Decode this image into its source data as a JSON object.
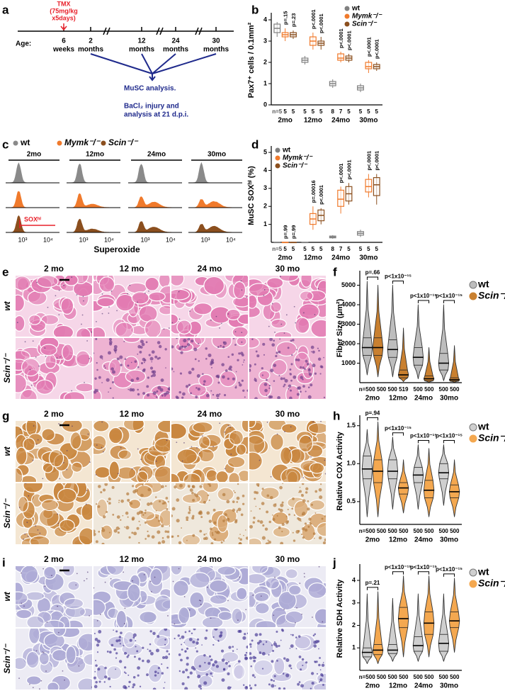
{
  "panel_labels": [
    "a",
    "b",
    "c",
    "d",
    "e",
    "f",
    "g",
    "h",
    "i",
    "j"
  ],
  "timeline": {
    "tmx": [
      "TMX",
      "(75mg/kg",
      "x5days)"
    ],
    "age_label": "Age:",
    "ticks": [
      [
        "6",
        "weeks"
      ],
      [
        "2",
        "months"
      ],
      [
        "12",
        "months"
      ],
      [
        "24",
        "months"
      ],
      [
        "30",
        "months"
      ]
    ],
    "analysis": [
      "MuSC analysis.",
      "BaCl₂ injury and",
      "analysis at 21 d.p.i."
    ]
  },
  "flow": {
    "legend": [
      "wt",
      "Mymk⁻/⁻",
      "Scin⁻/⁻"
    ],
    "colors": [
      "#8a8a8a",
      "#f07a2c",
      "#8b4f1e"
    ],
    "columns": [
      "2mo",
      "12mo",
      "24mo",
      "30mo"
    ],
    "x_tick_labels": [
      "10³",
      "10⁴"
    ],
    "gate_label": "SOXʰⁱ",
    "xlabel": "Superoxide"
  },
  "chart_data": [
    {
      "type": "box",
      "ylabel": "Pax7⁺ cells / 0.1mm²",
      "ylim": [
        0,
        4.2
      ],
      "yticks": [
        0,
        1,
        2,
        3,
        4
      ],
      "categories": [
        "2mo",
        "12mo",
        "24mo",
        "30mo"
      ],
      "n_labels": [
        "n=5",
        "5",
        "5",
        "5",
        "5",
        "5",
        "8",
        "7",
        "5",
        "5",
        "5",
        "5"
      ],
      "p_labels": [
        "p=.15",
        "p=.23",
        "p<.0001",
        "p<.0001",
        "p<.0001",
        "p<.0001",
        "p<.0001",
        "p<.0001"
      ],
      "series": [
        {
          "name": "wt",
          "color": "#808080",
          "median": [
            3.6,
            2.1,
            1.0,
            0.8
          ],
          "q1": [
            3.4,
            2.0,
            0.9,
            0.7
          ],
          "q3": [
            3.8,
            2.2,
            1.1,
            0.9
          ],
          "min": [
            3.2,
            1.9,
            0.8,
            0.6
          ],
          "max": [
            3.9,
            2.3,
            1.2,
            1.0
          ]
        },
        {
          "name": "Mymk⁻/⁻",
          "color": "#f07a2c",
          "median": [
            3.3,
            3.0,
            2.2,
            1.8
          ],
          "q1": [
            3.2,
            2.8,
            2.1,
            1.7
          ],
          "q3": [
            3.4,
            3.2,
            2.4,
            2.0
          ],
          "min": [
            3.0,
            2.6,
            2.0,
            1.5
          ],
          "max": [
            3.6,
            3.4,
            2.5,
            2.1
          ]
        },
        {
          "name": "Scin⁻/⁻",
          "color": "#8b4f1e",
          "median": [
            3.3,
            2.9,
            2.2,
            1.8
          ],
          "q1": [
            3.2,
            2.8,
            2.1,
            1.7
          ],
          "q3": [
            3.4,
            3.0,
            2.3,
            1.9
          ],
          "min": [
            3.1,
            2.6,
            2.0,
            1.6
          ],
          "max": [
            3.5,
            3.2,
            2.4,
            2.0
          ]
        }
      ]
    },
    {
      "type": "box",
      "ylabel": "MuSC SOXʰⁱ (%)",
      "ylim": [
        0,
        5.2
      ],
      "yticks": [
        1,
        2,
        3,
        4,
        5
      ],
      "categories": [
        "2mo",
        "12mo",
        "24mo",
        "30mo"
      ],
      "n_labels": [
        "n=5",
        "5",
        "5",
        "5",
        "5",
        "5",
        "8",
        "7",
        "5",
        "5",
        "5",
        "5"
      ],
      "p_labels": [
        "p=.99",
        "p=.99",
        "p=.00016",
        "p<.0001",
        "p<.0001",
        "p<.0001",
        "p<.0001",
        "p<.0001"
      ],
      "series": [
        {
          "name": "wt",
          "color": "#808080",
          "median": [
            0,
            0,
            0.3,
            0.5
          ],
          "q1": [
            0,
            0,
            0.25,
            0.4
          ],
          "q3": [
            0,
            0,
            0.35,
            0.6
          ],
          "min": [
            0,
            0,
            0.2,
            0.3
          ],
          "max": [
            0,
            0,
            0.4,
            0.7
          ]
        },
        {
          "name": "Mymk⁻/⁻",
          "color": "#f07a2c",
          "median": [
            0,
            1.3,
            2.4,
            3.1
          ],
          "q1": [
            0,
            1.0,
            2.0,
            2.8
          ],
          "q3": [
            0,
            1.6,
            2.9,
            3.5
          ],
          "min": [
            0,
            0.7,
            1.6,
            2.5
          ],
          "max": [
            0,
            2.0,
            3.1,
            3.8
          ]
        },
        {
          "name": "Scin⁻/⁻",
          "color": "#8b4f1e",
          "median": [
            0,
            1.5,
            2.7,
            3.2
          ],
          "q1": [
            0,
            1.2,
            2.3,
            2.6
          ],
          "q3": [
            0,
            1.8,
            3.1,
            3.6
          ],
          "min": [
            0,
            1.0,
            2.1,
            2.1
          ],
          "max": [
            0,
            1.9,
            3.3,
            3.8
          ]
        }
      ]
    },
    {
      "type": "violin",
      "ylabel": "Fiber Size (μm²)",
      "ylim": [
        0,
        5600
      ],
      "yticks": [
        1000,
        2000,
        3000,
        4000,
        5000
      ],
      "categories": [
        "2mo",
        "12mo",
        "24mo",
        "30mo"
      ],
      "n_labels": [
        "n=500 500",
        "500 519",
        "500 500",
        "500 500"
      ],
      "p_labels": [
        "p=.66",
        "p<1x10⁻¹⁵",
        "p<1x10⁻¹⁵",
        "p<1x10⁻¹⁵"
      ],
      "series": [
        {
          "name": "wt",
          "color": "#bdbdbd",
          "median": [
            1800,
            1700,
            1300,
            1000
          ],
          "q1": [
            1400,
            1300,
            900,
            650
          ],
          "q3": [
            2300,
            2200,
            1800,
            1500
          ],
          "min": [
            400,
            300,
            200,
            100
          ],
          "max": [
            5200,
            5000,
            4000,
            4000
          ]
        },
        {
          "name": "Scin⁻/⁻",
          "color": "#c98030",
          "median": [
            1800,
            400,
            200,
            150
          ],
          "q1": [
            1400,
            250,
            100,
            80
          ],
          "q3": [
            2300,
            650,
            350,
            250
          ],
          "min": [
            300,
            50,
            20,
            20
          ],
          "max": [
            5000,
            2800,
            1800,
            1900
          ]
        }
      ]
    },
    {
      "type": "violin",
      "ylabel": "Relative COX Activity",
      "ylim": [
        0.2,
        1.6
      ],
      "yticks": [
        {
          "value": 0.5,
          "label": "0.5"
        },
        {
          "value": 1,
          "label": "1.0"
        },
        {
          "value": 1.5,
          "label": "1.5"
        }
      ],
      "categories": [
        "2mo",
        "12mo",
        "24mo",
        "30mo"
      ],
      "n_labels": [
        "n=500 500",
        "500 500",
        "500 500",
        "500 500"
      ],
      "p_labels": [
        "p=.94",
        "p<1x10⁻¹⁵",
        "p<1x10⁻¹⁵",
        "p<1x10⁻¹⁵"
      ],
      "series": [
        {
          "name": "wt",
          "color": "#cfcfcf",
          "median": [
            0.93,
            0.9,
            0.85,
            0.88
          ],
          "q1": [
            0.8,
            0.8,
            0.75,
            0.8
          ],
          "q3": [
            1.1,
            1.05,
            0.95,
            1.0
          ],
          "min": [
            0.3,
            0.4,
            0.4,
            0.45
          ],
          "max": [
            1.45,
            1.35,
            1.25,
            1.25
          ]
        },
        {
          "name": "Scin⁻/⁻",
          "color": "#f4a850",
          "median": [
            0.9,
            0.68,
            0.65,
            0.63
          ],
          "q1": [
            0.75,
            0.6,
            0.55,
            0.55
          ],
          "q3": [
            1.05,
            0.75,
            0.78,
            0.72
          ],
          "min": [
            0.3,
            0.35,
            0.3,
            0.3
          ],
          "max": [
            1.55,
            1.05,
            1.2,
            1.05
          ]
        }
      ]
    },
    {
      "type": "violin",
      "ylabel": "Relative SDH Activity",
      "ylim": [
        0,
        4.6
      ],
      "yticks": [
        1,
        2,
        3,
        4
      ],
      "categories": [
        "2mo",
        "12mo",
        "24mo",
        "30mo"
      ],
      "n_labels": [
        "n=500 500",
        "500 500",
        "500 500",
        "500 500"
      ],
      "p_labels": [
        "p=.21",
        "p<1x10⁻¹⁵",
        "p<1x10⁻¹⁵",
        "p<1x10⁻¹⁵"
      ],
      "series": [
        {
          "name": "wt",
          "color": "#cfcfcf",
          "median": [
            0.8,
            0.9,
            1.1,
            1.2
          ],
          "q1": [
            0.6,
            0.75,
            0.85,
            0.85
          ],
          "q3": [
            1.0,
            1.15,
            1.5,
            1.6
          ],
          "min": [
            0.3,
            0.4,
            0.4,
            0.4
          ],
          "max": [
            3.4,
            3.2,
            3.4,
            3.4
          ]
        },
        {
          "name": "Scin⁻/⁻",
          "color": "#f4a850",
          "median": [
            0.9,
            2.3,
            2.1,
            2.2
          ],
          "q1": [
            0.7,
            1.9,
            1.6,
            1.9
          ],
          "q3": [
            1.15,
            2.8,
            2.6,
            2.6
          ],
          "min": [
            0.3,
            0.6,
            0.6,
            0.8
          ],
          "max": [
            3.5,
            4.2,
            4.2,
            4.1
          ]
        }
      ]
    }
  ],
  "histology": [
    {
      "columns": [
        "2 mo",
        "12 mo",
        "24 mo",
        "30 mo"
      ],
      "rows": [
        "wt",
        "Scin⁻/⁻"
      ]
    },
    {
      "columns": [
        "2 mo",
        "12 mo",
        "24 mo",
        "30 mo"
      ],
      "rows": [
        "wt",
        "Scin⁻/⁻"
      ]
    },
    {
      "columns": [
        "2 mo",
        "12 mo",
        "24 mo",
        "30 mo"
      ],
      "rows": [
        "wt",
        "Scin⁻/⁻"
      ]
    }
  ]
}
